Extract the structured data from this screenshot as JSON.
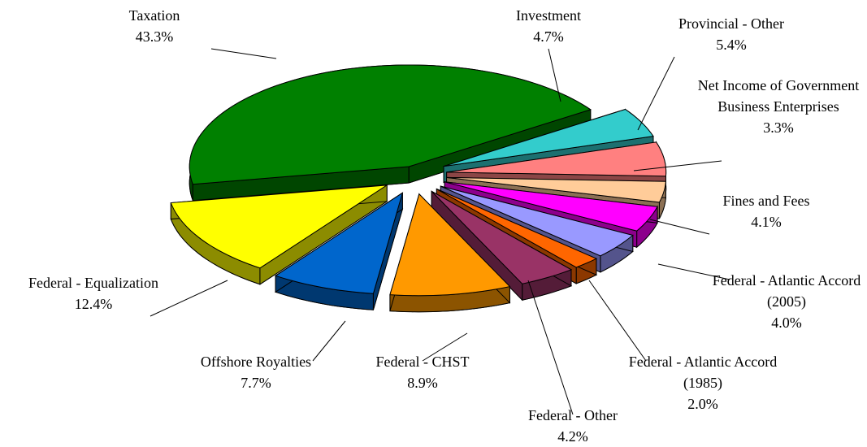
{
  "chart_data": {
    "type": "pie",
    "categories": [
      "Taxation",
      "Investment",
      "Provincial - Other",
      "Net Income of Government Business Enterprises",
      "Fines and Fees",
      "Federal - Atlantic Accord (2005)",
      "Federal - Atlantic Accord (1985)",
      "Federal - Other",
      "Federal - CHST",
      "Offshore Royalties",
      "Federal - Equalization"
    ],
    "values": [
      43.3,
      4.7,
      5.4,
      3.3,
      4.1,
      4.0,
      2.0,
      4.2,
      8.9,
      7.7,
      12.4
    ],
    "value_labels": [
      "43.3%",
      "4.7%",
      "5.4%",
      "3.3%",
      "4.1%",
      "4.0%",
      "2.0%",
      "4.2%",
      "8.9%",
      "7.7%",
      "12.4%"
    ],
    "colors": [
      "#008000",
      "#33CCCC",
      "#FF8080",
      "#FFCC99",
      "#FF00FF",
      "#9999FF",
      "#FF6600",
      "#993366",
      "#FF9900",
      "#0066CC",
      "#FFFF00"
    ]
  }
}
